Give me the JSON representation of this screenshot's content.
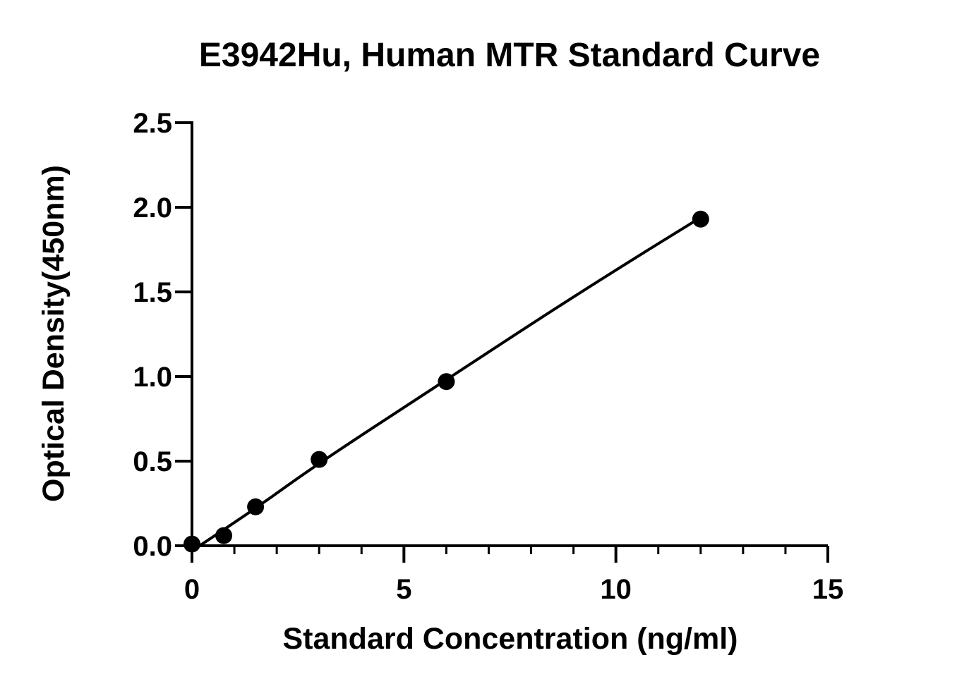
{
  "chart_data": {
    "type": "scatter",
    "title": "E3942Hu, Human MTR Standard Curve",
    "xlabel": "Standard Concentration (ng/ml)",
    "ylabel": "Optical Density(450nm)",
    "xlim": [
      0,
      15
    ],
    "ylim": [
      0,
      2.5
    ],
    "x_ticks": [
      0,
      5,
      10,
      15
    ],
    "x_tick_labels": [
      "0",
      "5",
      "10",
      "15"
    ],
    "x_minor_step": 1,
    "y_ticks": [
      0,
      0.5,
      1.0,
      1.5,
      2.0,
      2.5
    ],
    "y_tick_labels": [
      "0.0",
      "0.5",
      "1.0",
      "1.5",
      "2.0",
      "2.5"
    ],
    "grid": false,
    "legend": "none",
    "series": [
      {
        "points": [
          {
            "x": 0,
            "y": 0.01
          },
          {
            "x": 0.75,
            "y": 0.06
          },
          {
            "x": 1.5,
            "y": 0.23
          },
          {
            "x": 3,
            "y": 0.51
          },
          {
            "x": 6,
            "y": 0.97
          },
          {
            "x": 12,
            "y": 1.93
          }
        ],
        "fit_curve": [
          {
            "x": 0,
            "y": -0.03
          },
          {
            "x": 1.5,
            "y": 0.22
          },
          {
            "x": 3,
            "y": 0.49
          },
          {
            "x": 6,
            "y": 0.98
          },
          {
            "x": 8,
            "y": 1.31
          },
          {
            "x": 10,
            "y": 1.63
          },
          {
            "x": 12,
            "y": 1.94
          }
        ]
      }
    ],
    "colors": {
      "marker": "#000000",
      "line": "#000000",
      "axis": "#000000",
      "background": "#ffffff"
    }
  }
}
